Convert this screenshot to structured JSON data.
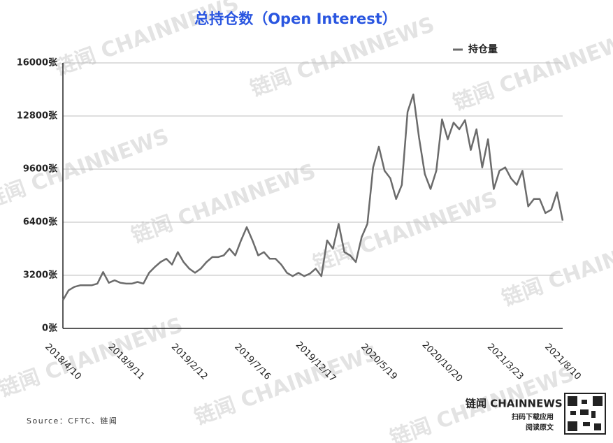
{
  "chart_data": {
    "type": "line",
    "title": "总持仓数（Open Interest）",
    "categories": [
      "2018/4/10",
      null,
      null,
      null,
      null,
      null,
      null,
      null,
      null,
      null,
      null,
      "2018/9/11",
      null,
      null,
      null,
      null,
      null,
      null,
      null,
      null,
      null,
      null,
      "2019/2/12",
      null,
      null,
      null,
      null,
      null,
      null,
      null,
      null,
      null,
      null,
      "2019/7/16",
      null,
      null,
      null,
      null,
      null,
      null,
      null,
      null,
      null,
      null,
      "2019/12/17",
      null,
      null,
      null,
      null,
      null,
      null,
      null,
      null,
      null,
      null,
      "2020/5/19",
      null,
      null,
      null,
      null,
      null,
      null,
      null,
      null,
      null,
      null,
      "2020/10/20",
      null,
      null,
      null,
      null,
      null,
      null,
      null,
      null,
      null,
      null,
      "2021/3/23",
      null,
      null,
      null,
      null,
      null,
      null,
      null,
      null,
      null,
      "2021/8/10"
    ],
    "series": [
      {
        "name": "持仓量",
        "color": "#6b6b6b",
        "values": [
          1700,
          2300,
          2500,
          2600,
          2600,
          2600,
          2700,
          3400,
          2750,
          2900,
          2750,
          2700,
          2700,
          2800,
          2700,
          3350,
          3700,
          4000,
          4200,
          3850,
          4600,
          4000,
          3600,
          3350,
          3600,
          4000,
          4300,
          4300,
          4400,
          4800,
          4400,
          5300,
          6100,
          5300,
          4400,
          4600,
          4200,
          4200,
          3850,
          3350,
          3150,
          3350,
          3150,
          3300,
          3600,
          3150,
          5300,
          4800,
          6300,
          4600,
          4400,
          4000,
          5500,
          6300,
          9700,
          10950,
          9500,
          9050,
          7800,
          8650,
          13050,
          14100,
          11500,
          9300,
          8400,
          9500,
          12600,
          11400,
          12400,
          12000,
          12550,
          10750,
          12000,
          9700,
          11400,
          8400,
          9500,
          9700,
          9050,
          8650,
          9500,
          7350,
          7800,
          7800,
          6950,
          7150,
          8200,
          6500
        ]
      }
    ],
    "ylim": [
      0,
      16000
    ],
    "yticks": [
      {
        "value": 0,
        "label": "0张"
      },
      {
        "value": 3200,
        "label": "3200张"
      },
      {
        "value": 6400,
        "label": "6400张"
      },
      {
        "value": 9600,
        "label": "9600张"
      },
      {
        "value": 12800,
        "label": "12800张"
      },
      {
        "value": 16000,
        "label": "16000张"
      }
    ],
    "grid": true,
    "legend": "top-right"
  },
  "watermark": "链闻 CHAINNEWS",
  "source": "Source：CFTC、链闻",
  "brand": "链闻 CHAINNEWS",
  "qr_caption": [
    "扫码下载应用",
    "阅读原文"
  ]
}
